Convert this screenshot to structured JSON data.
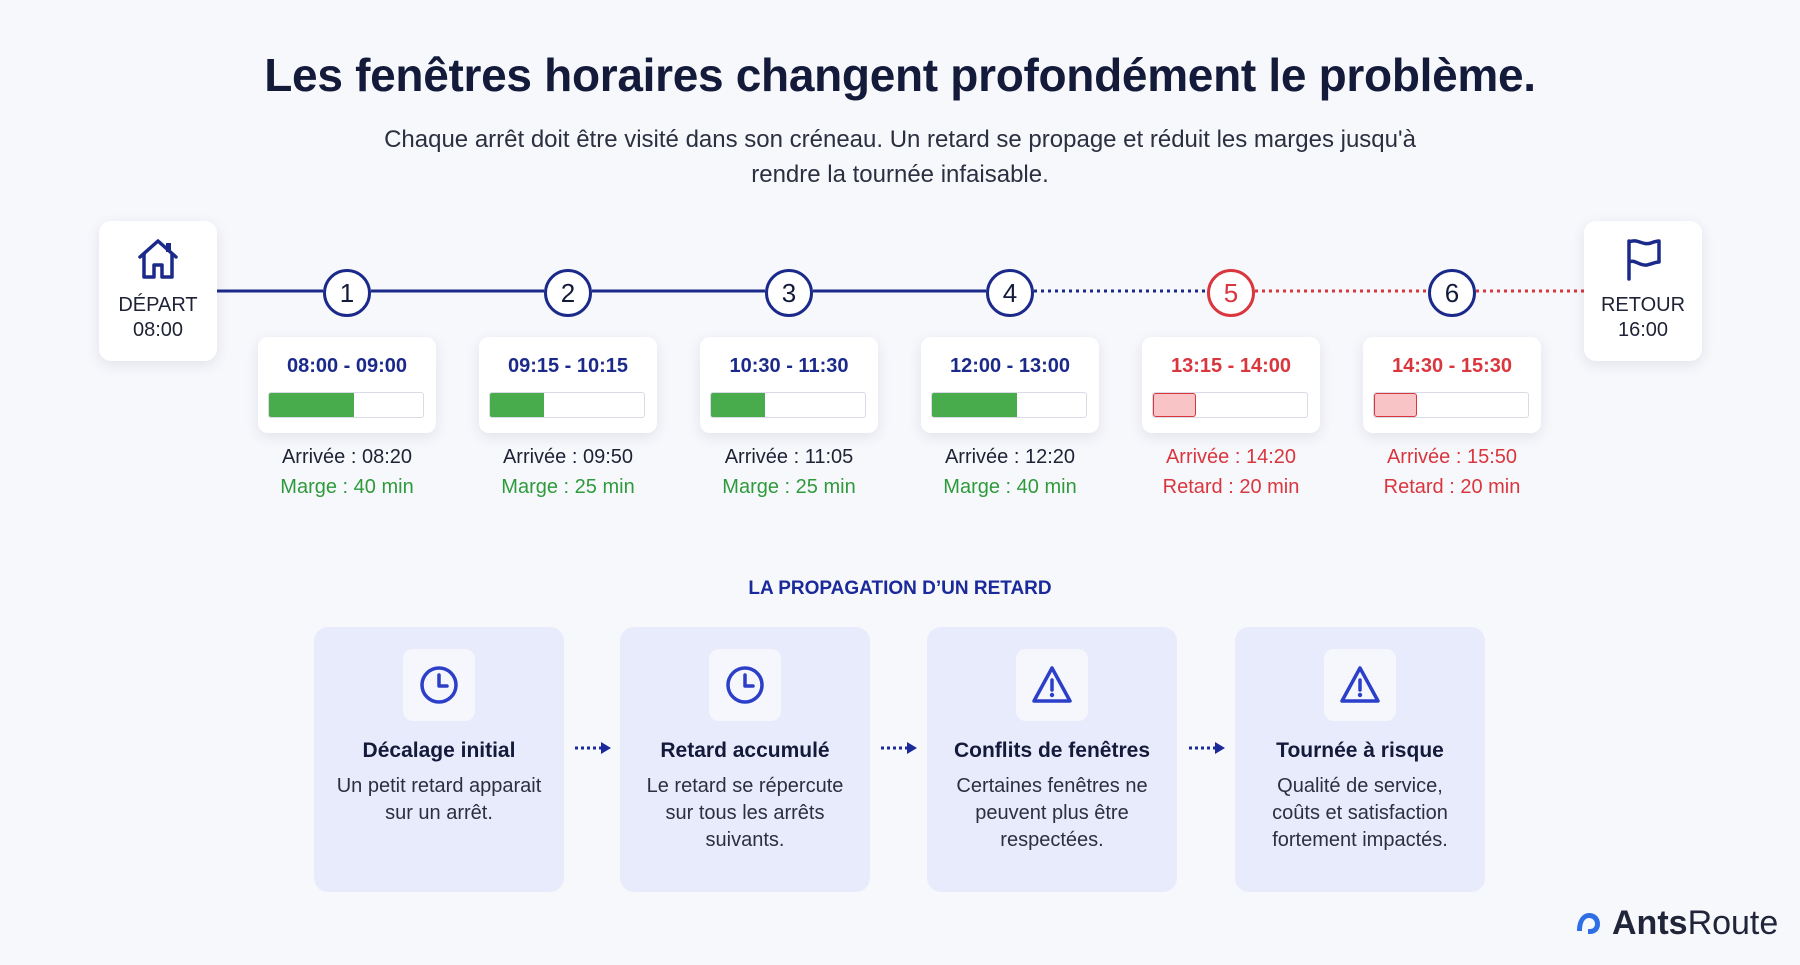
{
  "header": {
    "title": "Les fenêtres horaires changent profondément le problème.",
    "subtitle": "Chaque arrêt doit être visité dans son créneau. Un retard se propage et réduit les marges jusqu'à rendre la tournée infaisable."
  },
  "timeline": {
    "start": {
      "label": "DÉPART",
      "time": "08:00",
      "icon": "home-icon"
    },
    "end": {
      "label": "RETOUR",
      "time": "16:00",
      "icon": "flag-icon"
    },
    "stops": [
      {
        "num": "1",
        "window": "08:00 - 09:00",
        "arrival": "Arrivée : 08:20",
        "margin": "Marge : 40 min",
        "status": "ok",
        "fill": 0.55
      },
      {
        "num": "2",
        "window": "09:15 - 10:15",
        "arrival": "Arrivée : 09:50",
        "margin": "Marge : 25 min",
        "status": "ok",
        "fill": 0.35
      },
      {
        "num": "3",
        "window": "10:30 - 11:30",
        "arrival": "Arrivée : 11:05",
        "margin": "Marge : 25 min",
        "status": "ok",
        "fill": 0.35
      },
      {
        "num": "4",
        "window": "12:00 - 13:00",
        "arrival": "Arrivée : 12:20",
        "margin": "Marge : 40 min",
        "status": "ok",
        "fill": 0.55
      },
      {
        "num": "5",
        "window": "13:15 - 14:00",
        "arrival": "Arrivée : 14:20",
        "margin": "Retard : 20 min",
        "status": "late",
        "fill": 0.28
      },
      {
        "num": "6",
        "window": "14:30 - 15:30",
        "arrival": "Arrivée : 15:50",
        "margin": "Retard : 20 min",
        "status": "late",
        "fill": 0.28
      }
    ],
    "colors": {
      "ok_line": "#1b2a8a",
      "late_line": "#d9363e",
      "ok_fill": "#48ac4c",
      "late_fill": "#f8c4c6"
    }
  },
  "propagation": {
    "title": "LA PROPAGATION D’UN RETARD",
    "steps": [
      {
        "icon": "clock-icon",
        "title": "Décalage initial",
        "desc": "Un petit retard apparait sur un arrêt."
      },
      {
        "icon": "clock-icon",
        "title": "Retard accumulé",
        "desc": "Le retard se répercute sur tous les arrêts suivants."
      },
      {
        "icon": "warning-icon",
        "title": "Conflits de fenêtres",
        "desc": "Certaines fenêtres ne peuvent plus être respectées."
      },
      {
        "icon": "warning-icon",
        "title": "Tournée à risque",
        "desc": "Qualité de service, coûts et satisfaction fortement impactés."
      }
    ]
  },
  "brand": {
    "name_bold": "Ants",
    "name_regular": "Route"
  }
}
